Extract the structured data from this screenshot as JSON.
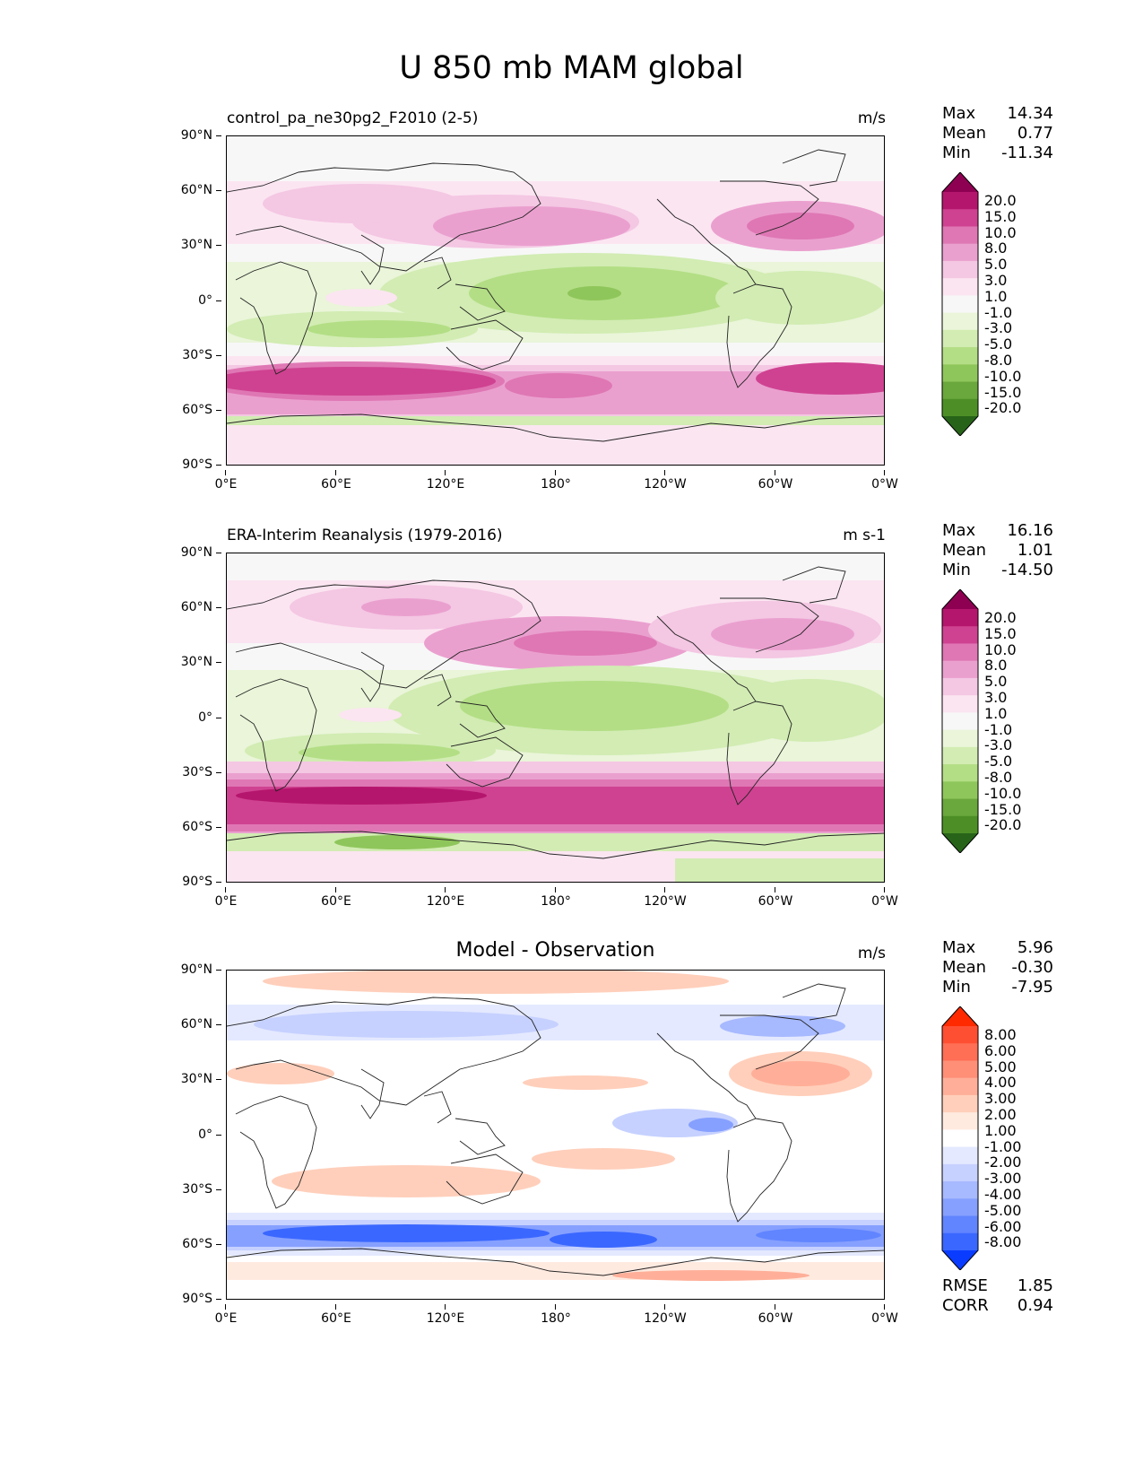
{
  "suptitle": "U 850 mb MAM global",
  "x_ticks": [
    "0°E",
    "60°E",
    "120°E",
    "180°",
    "120°W",
    "60°W",
    "0°W"
  ],
  "y_ticks": [
    "90°N",
    "60°N",
    "30°N",
    "0°",
    "30°S",
    "60°S",
    "90°S"
  ],
  "panels": [
    {
      "title": "control_pa_ne30pg2_F2010 (2-5)",
      "units": "m/s",
      "stats": [
        {
          "label": "Max",
          "value": "14.34"
        },
        {
          "label": "Mean",
          "value": "0.77"
        },
        {
          "label": "Min",
          "value": "-11.34"
        }
      ],
      "colorbar_labels": [
        "20.0",
        "15.0",
        "10.0",
        "8.0",
        "5.0",
        "3.0",
        "1.0",
        "-1.0",
        "-3.0",
        "-5.0",
        "-8.0",
        "-10.0",
        "-15.0",
        "-20.0"
      ],
      "colorbar_colors": [
        "#8e0152",
        "#b5166d",
        "#cf4291",
        "#df77b4",
        "#eaa0cf",
        "#f4c7e3",
        "#fbe5f1",
        "#f7f7f7",
        "#eaf5d9",
        "#d2ecb3",
        "#b3de85",
        "#8fc65b",
        "#6aa73c",
        "#4d8f26",
        "#276419"
      ]
    },
    {
      "title": "ERA-Interim Reanalysis (1979-2016)",
      "units": "m s-1",
      "stats": [
        {
          "label": "Max",
          "value": "16.16"
        },
        {
          "label": "Mean",
          "value": "1.01"
        },
        {
          "label": "Min",
          "value": "-14.50"
        }
      ],
      "colorbar_labels": [
        "20.0",
        "15.0",
        "10.0",
        "8.0",
        "5.0",
        "3.0",
        "1.0",
        "-1.0",
        "-3.0",
        "-5.0",
        "-8.0",
        "-10.0",
        "-15.0",
        "-20.0"
      ],
      "colorbar_colors": [
        "#8e0152",
        "#b5166d",
        "#cf4291",
        "#df77b4",
        "#eaa0cf",
        "#f4c7e3",
        "#fbe5f1",
        "#f7f7f7",
        "#eaf5d9",
        "#d2ecb3",
        "#b3de85",
        "#8fc65b",
        "#6aa73c",
        "#4d8f26",
        "#276419"
      ]
    },
    {
      "title": "Model - Observation",
      "units": "m/s",
      "stats": [
        {
          "label": "Max",
          "value": "5.96"
        },
        {
          "label": "Mean",
          "value": "-0.30"
        },
        {
          "label": "Min",
          "value": "-7.95"
        }
      ],
      "extra_stats": [
        {
          "label": "RMSE",
          "value": "1.85"
        },
        {
          "label": "CORR",
          "value": "0.94"
        }
      ],
      "colorbar_labels": [
        "8.00",
        "6.00",
        "5.00",
        "4.00",
        "3.00",
        "2.00",
        "1.00",
        "-1.00",
        "-2.00",
        "-3.00",
        "-4.00",
        "-5.00",
        "-6.00",
        "-8.00"
      ],
      "colorbar_colors": [
        "#ff2a00",
        "#ff4f33",
        "#ff6f55",
        "#ff8f77",
        "#ffaf99",
        "#ffcfbb",
        "#ffeae0",
        "#ffffff",
        "#e4e9ff",
        "#c6d1ff",
        "#a7b9ff",
        "#86a0ff",
        "#6185ff",
        "#3a67ff",
        "#0a3cff"
      ]
    }
  ]
}
